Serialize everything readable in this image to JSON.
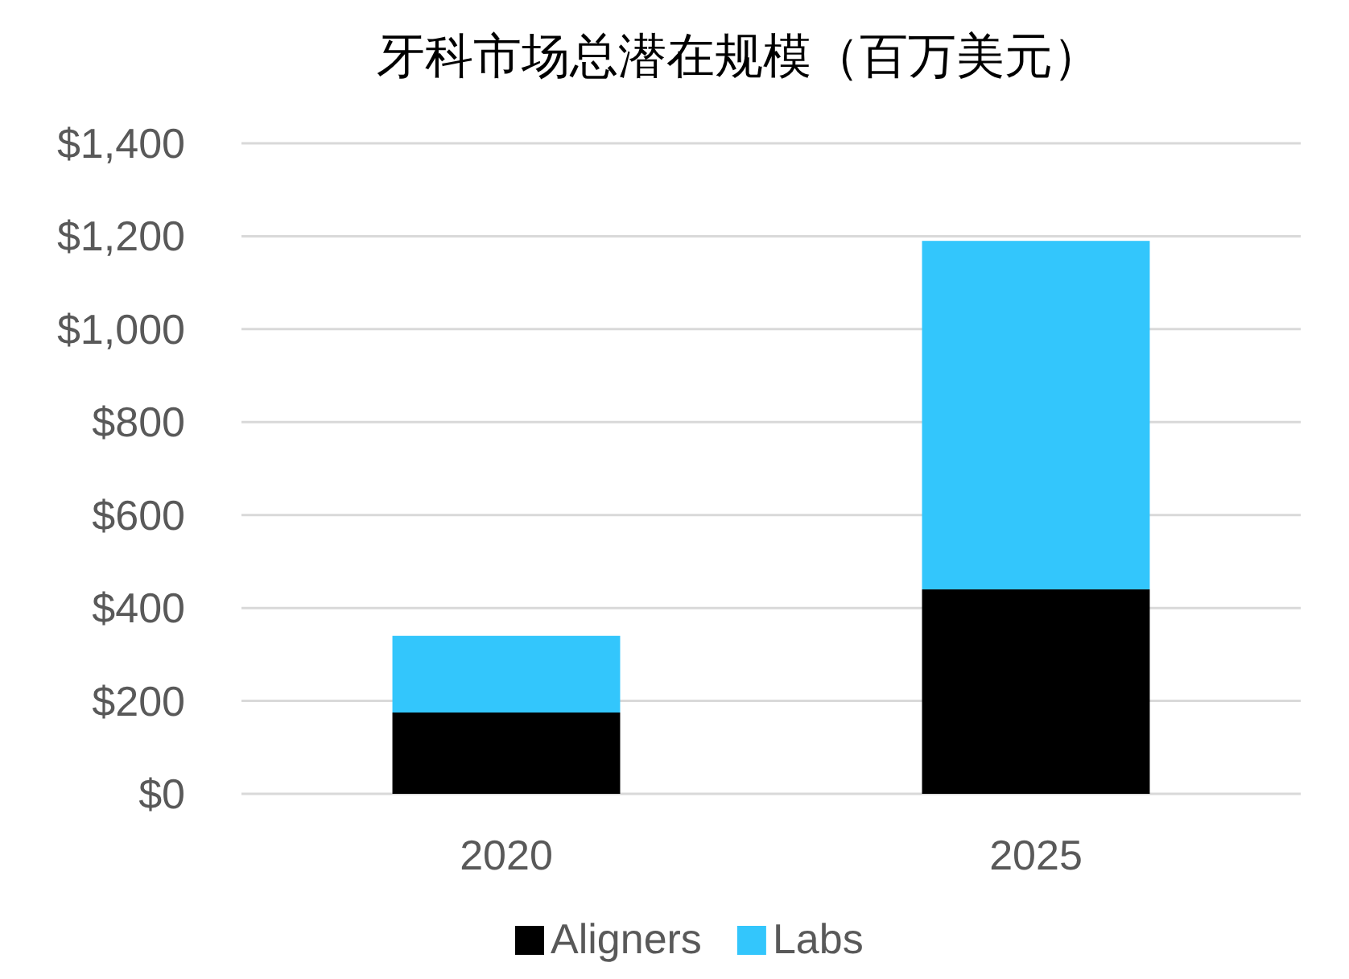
{
  "chart_data": {
    "type": "bar",
    "title": "牙科市场总潜在规模（百万美元）",
    "categories": [
      "2020",
      "2025"
    ],
    "series": [
      {
        "name": "Aligners",
        "color": "#000000",
        "values": [
          175,
          440
        ]
      },
      {
        "name": "Labs",
        "color": "#33c6fc",
        "values": [
          165,
          750
        ]
      }
    ],
    "stacked": true,
    "ylim": [
      0,
      1400
    ],
    "yticks": [
      {
        "value": 0,
        "label": "$0"
      },
      {
        "value": 200,
        "label": "$200"
      },
      {
        "value": 400,
        "label": "$400"
      },
      {
        "value": 600,
        "label": "$600"
      },
      {
        "value": 800,
        "label": "$800"
      },
      {
        "value": 1000,
        "label": "$1,000"
      },
      {
        "value": 1200,
        "label": "$1,200"
      },
      {
        "value": 1400,
        "label": "$1,400"
      }
    ],
    "grid": "y",
    "legend": "bottom"
  }
}
